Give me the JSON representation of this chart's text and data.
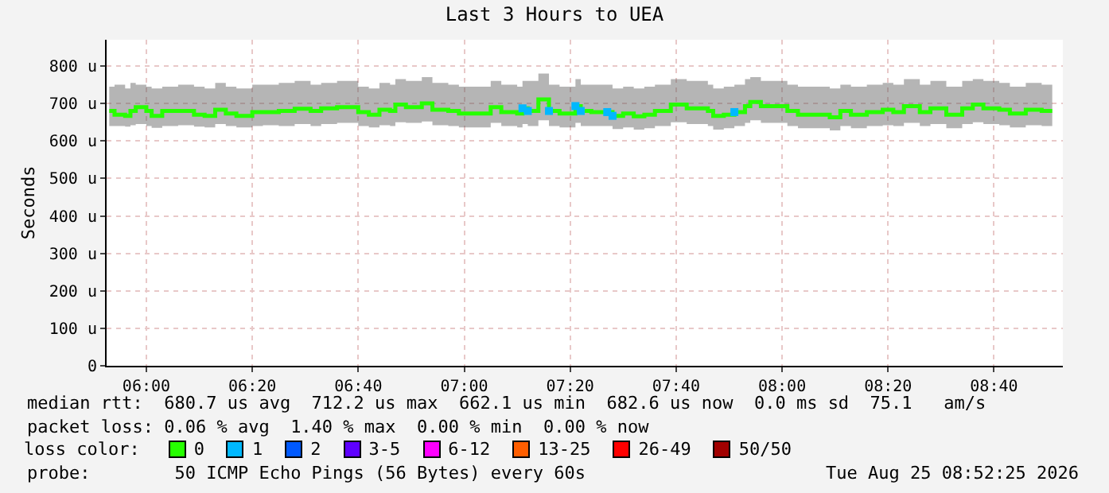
{
  "chart_data": {
    "type": "step",
    "title": "Last 3 Hours to UEA",
    "ylabel": "Seconds",
    "legend_title": "loss color:",
    "legend": "bottom",
    "grid": true,
    "line_style": "solid",
    "xlim": [
      "2026-08-25T05:52:30",
      "2026-08-25T08:53"
    ],
    "xticks": [
      {
        "value": "2026-08-25T06:00",
        "label": "06:00"
      },
      {
        "value": "2026-08-25T06:20",
        "label": "06:20"
      },
      {
        "value": "2026-08-25T06:40",
        "label": "06:40"
      },
      {
        "value": "2026-08-25T07:00",
        "label": "07:00"
      },
      {
        "value": "2026-08-25T07:20",
        "label": "07:20"
      },
      {
        "value": "2026-08-25T07:40",
        "label": "07:40"
      },
      {
        "value": "2026-08-25T08:00",
        "label": "08:00"
      },
      {
        "value": "2026-08-25T08:20",
        "label": "08:20"
      },
      {
        "value": "2026-08-25T08:40",
        "label": "08:40"
      }
    ],
    "ylim": [
      0,
      870
    ],
    "yticks": [
      0,
      {
        "value": 100,
        "label": "100 u"
      },
      {
        "value": 200,
        "label": "200 u"
      },
      {
        "value": 300,
        "label": "300 u"
      },
      {
        "value": 400,
        "label": "400 u"
      },
      {
        "value": 500,
        "label": "500 u"
      },
      {
        "value": 600,
        "label": "600 u"
      },
      {
        "value": 700,
        "label": "700 u"
      },
      {
        "value": 800,
        "label": "800 u"
      }
    ],
    "x": [
      "2026-08-25T05:53",
      "2026-08-25T05:54",
      "2026-08-25T05:56",
      "2026-08-25T05:57",
      "2026-08-25T05:58",
      "2026-08-25T06:00",
      "2026-08-25T06:01",
      "2026-08-25T06:03",
      "2026-08-25T06:06",
      "2026-08-25T06:09",
      "2026-08-25T06:11",
      "2026-08-25T06:13",
      "2026-08-25T06:15",
      "2026-08-25T06:17",
      "2026-08-25T06:20",
      "2026-08-25T06:22",
      "2026-08-25T06:25",
      "2026-08-25T06:28",
      "2026-08-25T06:31",
      "2026-08-25T06:33",
      "2026-08-25T06:36",
      "2026-08-25T06:38",
      "2026-08-25T06:40",
      "2026-08-25T06:42",
      "2026-08-25T06:44",
      "2026-08-25T06:46",
      "2026-08-25T06:47",
      "2026-08-25T06:49",
      "2026-08-25T06:52",
      "2026-08-25T06:54",
      "2026-08-25T06:57",
      "2026-08-25T06:59",
      "2026-08-25T07:02",
      "2026-08-25T07:05",
      "2026-08-25T07:07",
      "2026-08-25T07:10",
      "2026-08-25T07:11",
      "2026-08-25T07:12",
      "2026-08-25T07:14",
      "2026-08-25T07:16",
      "2026-08-25T07:18",
      "2026-08-25T07:21",
      "2026-08-25T07:22",
      "2026-08-25T07:24",
      "2026-08-25T07:27",
      "2026-08-25T07:28",
      "2026-08-25T07:30",
      "2026-08-25T07:32",
      "2026-08-25T07:34",
      "2026-08-25T07:36",
      "2026-08-25T07:39",
      "2026-08-25T07:42",
      "2026-08-25T07:44",
      "2026-08-25T07:46",
      "2026-08-25T07:47",
      "2026-08-25T07:49",
      "2026-08-25T07:51",
      "2026-08-25T07:53",
      "2026-08-25T07:54",
      "2026-08-25T07:56",
      "2026-08-25T07:59",
      "2026-08-25T08:01",
      "2026-08-25T08:03",
      "2026-08-25T08:06",
      "2026-08-25T08:09",
      "2026-08-25T08:11",
      "2026-08-25T08:13",
      "2026-08-25T08:16",
      "2026-08-25T08:19",
      "2026-08-25T08:21",
      "2026-08-25T08:23",
      "2026-08-25T08:26",
      "2026-08-25T08:28",
      "2026-08-25T08:31",
      "2026-08-25T08:34",
      "2026-08-25T08:36",
      "2026-08-25T08:38",
      "2026-08-25T08:41",
      "2026-08-25T08:43",
      "2026-08-25T08:46",
      "2026-08-25T08:49",
      "2026-08-25T08:51"
    ],
    "series": [
      {
        "name": "0",
        "color": "#26ff00",
        "values": [
          680,
          670,
          667,
          680,
          690,
          680,
          667,
          680,
          680,
          670,
          667,
          683,
          673,
          667,
          677,
          677,
          680,
          686,
          680,
          687,
          690,
          690,
          677,
          670,
          683,
          680,
          697,
          690,
          700,
          683,
          680,
          673,
          673,
          690,
          677,
          673,
          687,
          680,
          711,
          680,
          673,
          693,
          680,
          677,
          677,
          667,
          673,
          666,
          670,
          680,
          697,
          687,
          687,
          680,
          667,
          670,
          677,
          693,
          704,
          693,
          693,
          680,
          670,
          670,
          663,
          680,
          670,
          677,
          683,
          677,
          693,
          677,
          687,
          670,
          687,
          697,
          687,
          683,
          673,
          683,
          680,
          680
        ],
        "lower": [
          640,
          640,
          638,
          642,
          645,
          640,
          635,
          640,
          642,
          638,
          636,
          645,
          640,
          636,
          640,
          642,
          640,
          645,
          640,
          645,
          648,
          648,
          640,
          636,
          642,
          640,
          650,
          648,
          652,
          642,
          640,
          636,
          636,
          648,
          640,
          636,
          645,
          640,
          655,
          640,
          636,
          648,
          640,
          640,
          640,
          632,
          636,
          630,
          634,
          640,
          650,
          645,
          645,
          640,
          630,
          634,
          640,
          648,
          655,
          648,
          648,
          640,
          634,
          634,
          628,
          640,
          634,
          640,
          642,
          640,
          648,
          640,
          645,
          634,
          645,
          650,
          645,
          642,
          636,
          642,
          640,
          640
        ],
        "upper": [
          745,
          750,
          740,
          755,
          750,
          745,
          740,
          745,
          750,
          745,
          740,
          755,
          745,
          740,
          750,
          750,
          755,
          760,
          750,
          755,
          760,
          760,
          745,
          740,
          755,
          750,
          765,
          760,
          770,
          755,
          750,
          745,
          745,
          760,
          750,
          745,
          760,
          760,
          780,
          750,
          745,
          765,
          750,
          750,
          750,
          740,
          745,
          740,
          745,
          750,
          765,
          760,
          760,
          750,
          740,
          745,
          750,
          765,
          770,
          760,
          760,
          750,
          745,
          745,
          740,
          750,
          745,
          750,
          755,
          750,
          765,
          750,
          760,
          745,
          760,
          765,
          760,
          755,
          745,
          755,
          750,
          750
        ]
      },
      {
        "name": "1",
        "type": "scatter",
        "marker": "square",
        "color": "#00b8ff",
        "x": [
          "2026-08-25T07:11",
          "2026-08-25T07:12",
          "2026-08-25T07:16",
          "2026-08-25T07:21",
          "2026-08-25T07:22",
          "2026-08-25T07:27",
          "2026-08-25T07:28",
          "2026-08-25T07:51"
        ],
        "values": [
          687,
          680,
          680,
          693,
          680,
          677,
          667,
          677
        ]
      },
      {
        "name": "2",
        "type": "scatter",
        "color": "#0059ff",
        "values": [
          null,
          null,
          null,
          null,
          null,
          null,
          null,
          null,
          null,
          null,
          null,
          null,
          null,
          null,
          null,
          null,
          null,
          null,
          null,
          null,
          null,
          null,
          null,
          null,
          null,
          null,
          null,
          null,
          null,
          null,
          null,
          null,
          null,
          null,
          null,
          null,
          null,
          null,
          null,
          null,
          null,
          null,
          null,
          null,
          null,
          null,
          null,
          null,
          null,
          null,
          null,
          null,
          null,
          null,
          null,
          null,
          null,
          null,
          null,
          null,
          null,
          null,
          null,
          null,
          null,
          null,
          null,
          null,
          null,
          null,
          null,
          null,
          null,
          null,
          null,
          null,
          null,
          null,
          null,
          null,
          null,
          null
        ]
      },
      {
        "name": "3-5",
        "type": "scatter",
        "color": "#5e00ff",
        "values": [
          null,
          null,
          null,
          null,
          null,
          null,
          null,
          null,
          null,
          null,
          null,
          null,
          null,
          null,
          null,
          null,
          null,
          null,
          null,
          null,
          null,
          null,
          null,
          null,
          null,
          null,
          null,
          null,
          null,
          null,
          null,
          null,
          null,
          null,
          null,
          null,
          null,
          null,
          null,
          null,
          null,
          null,
          null,
          null,
          null,
          null,
          null,
          null,
          null,
          null,
          null,
          null,
          null,
          null,
          null,
          null,
          null,
          null,
          null,
          null,
          null,
          null,
          null,
          null,
          null,
          null,
          null,
          null,
          null,
          null,
          null,
          null,
          null,
          null,
          null,
          null,
          null,
          null,
          null,
          null,
          null,
          null
        ]
      },
      {
        "name": "6-12",
        "type": "scatter",
        "color": "#ff00ff",
        "values": [
          null,
          null,
          null,
          null,
          null,
          null,
          null,
          null,
          null,
          null,
          null,
          null,
          null,
          null,
          null,
          null,
          null,
          null,
          null,
          null,
          null,
          null,
          null,
          null,
          null,
          null,
          null,
          null,
          null,
          null,
          null,
          null,
          null,
          null,
          null,
          null,
          null,
          null,
          null,
          null,
          null,
          null,
          null,
          null,
          null,
          null,
          null,
          null,
          null,
          null,
          null,
          null,
          null,
          null,
          null,
          null,
          null,
          null,
          null,
          null,
          null,
          null,
          null,
          null,
          null,
          null,
          null,
          null,
          null,
          null,
          null,
          null,
          null,
          null,
          null,
          null,
          null,
          null,
          null,
          null,
          null,
          null
        ]
      },
      {
        "name": "13-25",
        "type": "scatter",
        "color": "#ff5e00",
        "values": [
          null,
          null,
          null,
          null,
          null,
          null,
          null,
          null,
          null,
          null,
          null,
          null,
          null,
          null,
          null,
          null,
          null,
          null,
          null,
          null,
          null,
          null,
          null,
          null,
          null,
          null,
          null,
          null,
          null,
          null,
          null,
          null,
          null,
          null,
          null,
          null,
          null,
          null,
          null,
          null,
          null,
          null,
          null,
          null,
          null,
          null,
          null,
          null,
          null,
          null,
          null,
          null,
          null,
          null,
          null,
          null,
          null,
          null,
          null,
          null,
          null,
          null,
          null,
          null,
          null,
          null,
          null,
          null,
          null,
          null,
          null,
          null,
          null,
          null,
          null,
          null,
          null,
          null,
          null,
          null,
          null,
          null
        ]
      },
      {
        "name": "26-49",
        "type": "scatter",
        "color": "#ff0000",
        "values": [
          null,
          null,
          null,
          null,
          null,
          null,
          null,
          null,
          null,
          null,
          null,
          null,
          null,
          null,
          null,
          null,
          null,
          null,
          null,
          null,
          null,
          null,
          null,
          null,
          null,
          null,
          null,
          null,
          null,
          null,
          null,
          null,
          null,
          null,
          null,
          null,
          null,
          null,
          null,
          null,
          null,
          null,
          null,
          null,
          null,
          null,
          null,
          null,
          null,
          null,
          null,
          null,
          null,
          null,
          null,
          null,
          null,
          null,
          null,
          null,
          null,
          null,
          null,
          null,
          null,
          null,
          null,
          null,
          null,
          null,
          null,
          null,
          null,
          null,
          null,
          null,
          null,
          null,
          null,
          null,
          null,
          null
        ]
      },
      {
        "name": "50/50",
        "type": "scatter",
        "color": "#a10000",
        "values": [
          null,
          null,
          null,
          null,
          null,
          null,
          null,
          null,
          null,
          null,
          null,
          null,
          null,
          null,
          null,
          null,
          null,
          null,
          null,
          null,
          null,
          null,
          null,
          null,
          null,
          null,
          null,
          null,
          null,
          null,
          null,
          null,
          null,
          null,
          null,
          null,
          null,
          null,
          null,
          null,
          null,
          null,
          null,
          null,
          null,
          null,
          null,
          null,
          null,
          null,
          null,
          null,
          null,
          null,
          null,
          null,
          null,
          null,
          null,
          null,
          null,
          null,
          null,
          null,
          null,
          null,
          null,
          null,
          null,
          null,
          null,
          null,
          null,
          null,
          null,
          null,
          null,
          null,
          null,
          null,
          null,
          null
        ]
      }
    ],
    "annotations": [
      "median rtt:  680.7 us avg  712.2 us max  662.1 us min  682.6 us now  0.0 ms sd  75.1   am/s",
      "packet loss: 0.06 % avg  1.40 % max  0.00 % min  0.00 % now",
      "probe:        50 ICMP Echo Pings (56 Bytes) every 60s",
      "Tue Aug 25 08:52:25 2026"
    ]
  }
}
